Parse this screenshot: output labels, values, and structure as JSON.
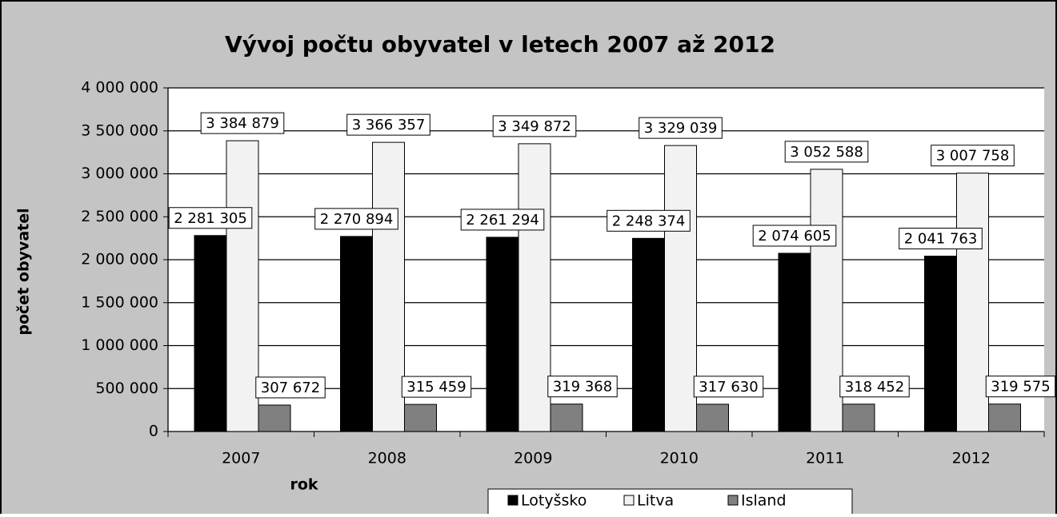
{
  "chart_data": {
    "type": "bar",
    "title": "Vývoj počtu obyvatel v letech 2007 až 2012",
    "x_label": "rok",
    "y_label": "počet obyvatel",
    "categories": [
      "2007",
      "2008",
      "2009",
      "2010",
      "2011",
      "2012"
    ],
    "series": [
      {
        "name": "Lotyšsko",
        "color": "#000000",
        "values": [
          2281305,
          2270894,
          2261294,
          2248374,
          2074605,
          2041763
        ],
        "value_labels": [
          "2 281 305",
          "2 270 894",
          "2 261 294",
          "2 248 374",
          "2 074 605",
          "2 041 763"
        ]
      },
      {
        "name": "Litva",
        "color": "#f2f2f2",
        "values": [
          3384879,
          3366357,
          3349872,
          3329039,
          3052588,
          3007758
        ],
        "value_labels": [
          "3 384 879",
          "3 366 357",
          "3 349 872",
          "3 329 039",
          "3 052 588",
          "3 007 758"
        ]
      },
      {
        "name": "Island",
        "color": "#808080",
        "values": [
          307672,
          315459,
          319368,
          317630,
          318452,
          319575
        ],
        "value_labels": [
          "307 672",
          "315 459",
          "319 368",
          "317 630",
          "318 452",
          "319 575"
        ]
      }
    ],
    "ylim": [
      0,
      4000000
    ],
    "yticks": [
      0,
      {
        "value": 500000,
        "label": "500 000"
      },
      {
        "value": 1000000,
        "label": "1 000 000"
      },
      {
        "value": 1500000,
        "label": "1 500 000"
      },
      {
        "value": 2000000,
        "label": "2 000 000"
      },
      {
        "value": 2500000,
        "label": "2 500 000"
      },
      {
        "value": 3000000,
        "label": "3 000 000"
      },
      {
        "value": 3500000,
        "label": "3 500 000"
      },
      {
        "value": 4000000,
        "label": "4 000 000"
      }
    ],
    "grid": true,
    "legend": "bottom"
  }
}
